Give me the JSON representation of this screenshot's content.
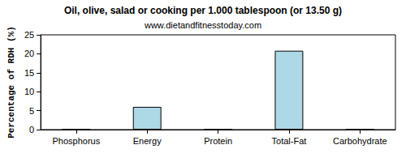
{
  "chart_data": {
    "type": "bar",
    "title": "Oil, olive, salad or cooking per 1.000 tablespoon (or 13.50 g)",
    "subtitle": "www.dietandfitnesstoday.com",
    "y_label": "Percentage of RDH (%)",
    "categories": [
      "Phosphorus",
      "Energy",
      "Protein",
      "Total-Fat",
      "Carbohydrate"
    ],
    "values": [
      0,
      6,
      0,
      20.8,
      0
    ],
    "color": "#add8e6",
    "ylim": [
      0,
      25
    ],
    "yticks": [
      0,
      5,
      10,
      15,
      20,
      25
    ],
    "grid": false
  }
}
